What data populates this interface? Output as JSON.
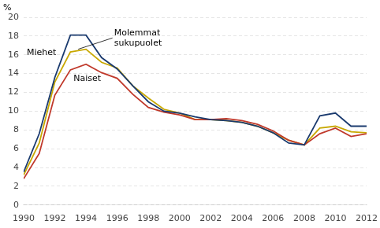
{
  "chart_data": {
    "type": "line",
    "x": [
      1990,
      1991,
      1992,
      1993,
      1994,
      1995,
      1996,
      1997,
      1998,
      1999,
      2000,
      2001,
      2002,
      2003,
      2004,
      2005,
      2006,
      2007,
      2008,
      2009,
      2010,
      2011,
      2012
    ],
    "series": [
      {
        "name": "Miehet",
        "color": "#1a3a6e",
        "values": [
          3.5,
          7.6,
          13.6,
          18.1,
          18.1,
          15.7,
          14.5,
          12.7,
          11.0,
          10.0,
          9.8,
          9.4,
          9.1,
          9.0,
          8.8,
          8.4,
          7.7,
          6.6,
          6.4,
          9.5,
          9.8,
          8.4,
          8.4
        ]
      },
      {
        "name": "Naiset",
        "color": "#c0392b",
        "values": [
          2.8,
          5.5,
          11.7,
          14.4,
          15.0,
          14.1,
          13.5,
          11.8,
          10.4,
          9.9,
          9.6,
          9.1,
          9.1,
          9.2,
          9.0,
          8.6,
          7.9,
          6.9,
          6.4,
          7.6,
          8.2,
          7.3,
          7.6
        ]
      },
      {
        "name": "Molemmat\nsukupuolet",
        "color": "#c8a800",
        "values": [
          3.2,
          6.6,
          13.1,
          16.3,
          16.6,
          15.2,
          14.6,
          12.7,
          11.4,
          10.2,
          9.8,
          9.1,
          9.1,
          9.0,
          8.8,
          8.4,
          7.7,
          6.9,
          6.4,
          8.2,
          8.4,
          7.8,
          7.7
        ]
      }
    ],
    "y_label": "%",
    "annotations": [
      {
        "text": "Miehet",
        "x": 1990.2,
        "y": 16.0
      },
      {
        "text": "Naiset",
        "x": 1993.2,
        "y": 13.2
      },
      {
        "text": "Molemmat\nsukupuolet",
        "x": 1995.8,
        "y": 17.8,
        "point": [
          1993.5,
          16.6
        ]
      }
    ],
    "xlim": [
      1990,
      2012
    ],
    "xticks": [
      1990,
      1992,
      1994,
      1996,
      1998,
      2000,
      2002,
      2004,
      2006,
      2008,
      2010,
      2012
    ],
    "ylim": [
      0,
      20
    ],
    "yticks": [
      0,
      2,
      4,
      6,
      8,
      10,
      12,
      14,
      16,
      18,
      20
    ],
    "grid": true
  }
}
